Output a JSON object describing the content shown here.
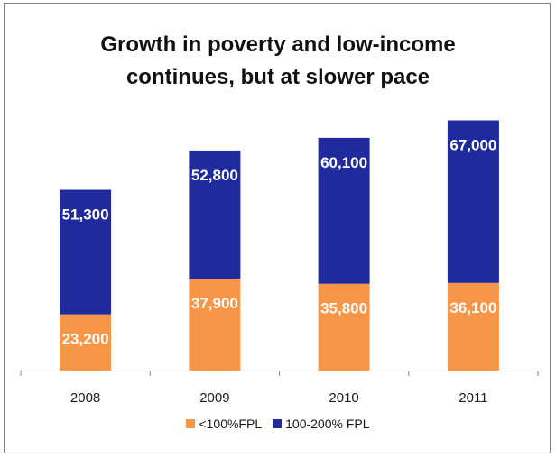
{
  "chart_data": {
    "type": "bar",
    "stacked": true,
    "title_lines": [
      "Growth in poverty and low-income",
      "continues, but at slower pace"
    ],
    "categories": [
      "2008",
      "2009",
      "2010",
      "2011"
    ],
    "series": [
      {
        "name": "<100%FPL",
        "color": "#f79646",
        "values": [
          23200,
          37900,
          35800,
          36100
        ],
        "labels": [
          "23,200",
          "37,900",
          "35,800",
          "36,100"
        ]
      },
      {
        "name": "100-200% FPL",
        "color": "#1f2a9c",
        "values": [
          51300,
          52800,
          60100,
          67000
        ],
        "labels": [
          "51,300",
          "52,800",
          "60,100",
          "67,000"
        ]
      }
    ],
    "xlabel": "",
    "ylabel": "",
    "y_axis_visible": false,
    "grid": false,
    "legend_position": "bottom"
  }
}
